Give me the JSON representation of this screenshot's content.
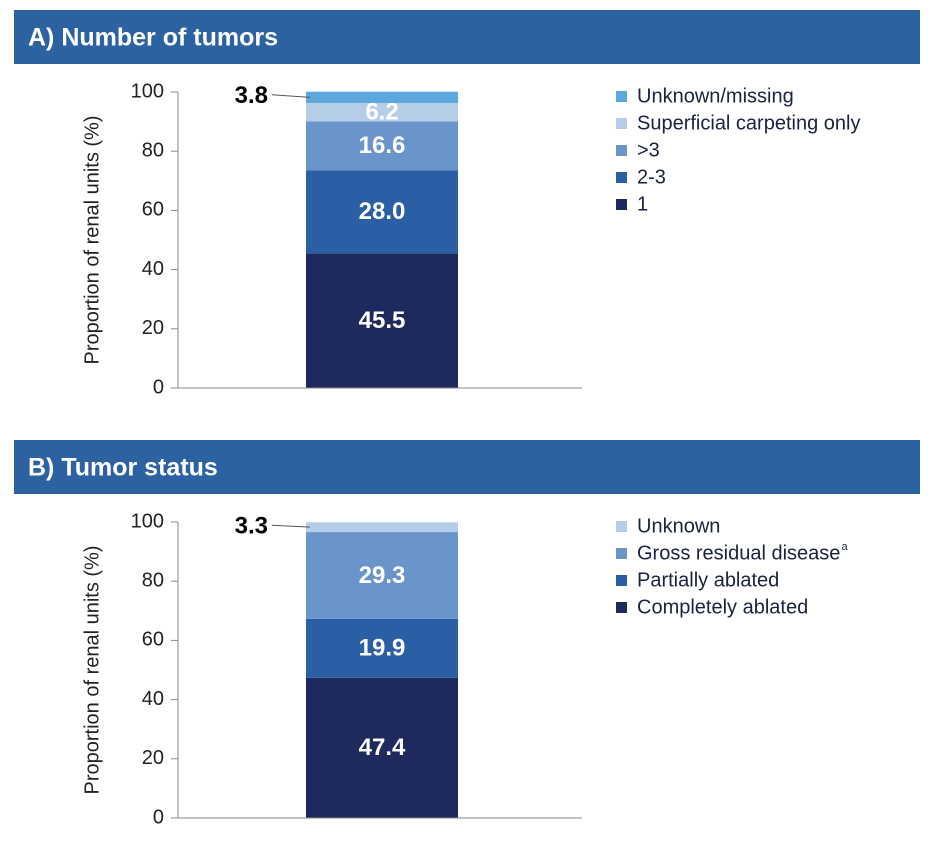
{
  "chart_data": [
    {
      "type": "bar",
      "stacked": true,
      "title": "A) Number of tumors",
      "ylabel": "Proportion of renal units (%)",
      "ylim": [
        0,
        100
      ],
      "yticks": [
        0,
        20,
        40,
        60,
        80,
        100
      ],
      "grid": false,
      "series": [
        {
          "name": "1",
          "color": "#1e2a5e",
          "values": [
            45.5
          ]
        },
        {
          "name": "2-3",
          "color": "#2b5fa5",
          "values": [
            28.0
          ],
          "value_labels": [
            "28.0"
          ]
        },
        {
          "name": ">3",
          "color": "#6a95cb",
          "values": [
            16.6
          ]
        },
        {
          "name": "Superficial carpeting only",
          "color": "#b6cde9",
          "values": [
            6.2
          ]
        },
        {
          "name": "Unknown/missing",
          "color": "#5ba8dc",
          "values": [
            3.8
          ]
        }
      ]
    },
    {
      "type": "bar",
      "stacked": true,
      "title": "B) Tumor status",
      "ylabel": "Proportion of renal units (%)",
      "ylim": [
        0,
        100
      ],
      "yticks": [
        0,
        20,
        40,
        60,
        80,
        100
      ],
      "grid": false,
      "series": [
        {
          "name": "Completely ablated",
          "color": "#1e2a5e",
          "values": [
            47.4
          ]
        },
        {
          "name": "Partially ablated",
          "color": "#2b5fa5",
          "values": [
            19.9
          ]
        },
        {
          "name": "Gross residual disease",
          "footnote": "a",
          "color": "#6a95cb",
          "values": [
            29.3
          ]
        },
        {
          "name": "Unknown",
          "color": "#b6cde9",
          "values": [
            3.3
          ]
        }
      ]
    }
  ]
}
